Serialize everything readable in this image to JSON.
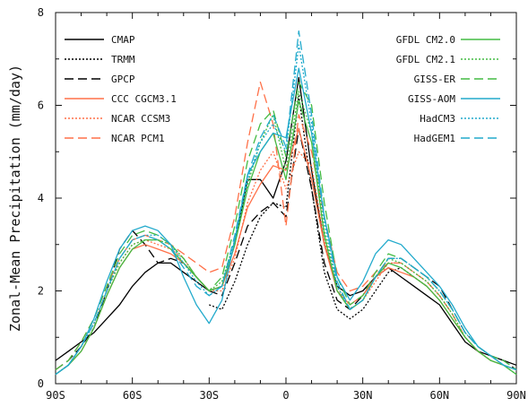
{
  "chart_data": {
    "type": "line",
    "title": "",
    "xlabel": "",
    "ylabel": "Zonal-Mean Precipitation (mm/day)",
    "xlim": [
      -90,
      90
    ],
    "ylim": [
      0,
      8
    ],
    "x_ticks": [
      {
        "value": -90,
        "label": "90S"
      },
      {
        "value": -60,
        "label": "60S"
      },
      {
        "value": -30,
        "label": "30S"
      },
      {
        "value": 0,
        "label": "0"
      },
      {
        "value": 30,
        "label": "30N"
      },
      {
        "value": 60,
        "label": "60N"
      },
      {
        "value": 90,
        "label": "90N"
      }
    ],
    "y_ticks": [
      0,
      2,
      4,
      6,
      8
    ],
    "grid": false,
    "legend": "top-left and top-right columns",
    "x": [
      -90,
      -85,
      -80,
      -75,
      -70,
      -65,
      -60,
      -55,
      -50,
      -45,
      -40,
      -35,
      -30,
      -25,
      -20,
      -15,
      -10,
      -5,
      0,
      5,
      10,
      15,
      20,
      25,
      30,
      35,
      40,
      45,
      50,
      55,
      60,
      65,
      70,
      75,
      80,
      85,
      90
    ],
    "series": [
      {
        "name": "CMAP",
        "color": "#000000",
        "dash": "solid",
        "values": [
          0.5,
          0.7,
          0.9,
          1.1,
          1.4,
          1.7,
          2.1,
          2.4,
          2.6,
          2.6,
          2.4,
          2.2,
          2.0,
          2.1,
          3.0,
          4.4,
          4.4,
          4.0,
          4.8,
          6.6,
          4.6,
          3.0,
          2.1,
          1.9,
          2.0,
          2.3,
          2.5,
          2.3,
          2.1,
          1.9,
          1.7,
          1.3,
          0.9,
          0.7,
          0.6,
          0.5,
          0.4
        ]
      },
      {
        "name": "TRMM",
        "color": "#000000",
        "dash": "2,2",
        "values": [
          null,
          null,
          null,
          null,
          null,
          null,
          null,
          null,
          null,
          null,
          null,
          null,
          1.7,
          1.6,
          2.2,
          3.0,
          3.6,
          3.9,
          3.8,
          6.2,
          4.2,
          2.4,
          1.6,
          1.4,
          1.6,
          2.0,
          2.4,
          2.5,
          2.3,
          2.1,
          null,
          null,
          null,
          null,
          null,
          null,
          null
        ]
      },
      {
        "name": "GPCP",
        "color": "#000000",
        "dash": "10,5",
        "values": [
          0.3,
          0.5,
          0.8,
          1.2,
          2.0,
          2.9,
          3.3,
          3.0,
          2.6,
          2.7,
          2.6,
          2.3,
          2.0,
          1.9,
          2.6,
          3.4,
          3.7,
          3.9,
          3.6,
          5.5,
          4.2,
          2.6,
          1.8,
          1.6,
          1.9,
          2.3,
          2.7,
          2.7,
          2.5,
          2.3,
          2.1,
          1.6,
          1.1,
          0.8,
          0.6,
          0.5,
          0.3
        ]
      },
      {
        "name": "CCC CGCM3.1",
        "color": "#ff7048",
        "dash": "solid",
        "values": [
          0.2,
          0.4,
          0.7,
          1.2,
          1.9,
          2.5,
          2.9,
          3.0,
          2.9,
          2.8,
          2.6,
          2.3,
          2.0,
          2.1,
          2.8,
          3.8,
          4.3,
          4.7,
          4.6,
          5.5,
          4.4,
          3.0,
          2.0,
          1.7,
          1.9,
          2.3,
          2.5,
          2.4,
          2.3,
          2.1,
          1.8,
          1.4,
          1.0,
          0.7,
          0.5,
          0.4,
          0.3
        ]
      },
      {
        "name": "NCAR CCSM3",
        "color": "#ff7048",
        "dash": "2,2",
        "values": [
          0.2,
          0.4,
          0.8,
          1.3,
          2.0,
          2.6,
          3.0,
          3.1,
          3.0,
          2.9,
          2.7,
          2.3,
          2.0,
          2.0,
          2.7,
          3.9,
          4.6,
          5.0,
          4.2,
          5.0,
          4.7,
          3.1,
          2.0,
          1.6,
          1.8,
          2.2,
          2.6,
          2.6,
          2.4,
          2.2,
          1.9,
          1.5,
          1.0,
          0.7,
          0.5,
          0.4,
          0.3
        ]
      },
      {
        "name": "NCAR PCM1",
        "color": "#ff7048",
        "dash": "10,5",
        "values": [
          0.3,
          0.5,
          0.9,
          1.4,
          2.1,
          2.7,
          3.1,
          3.2,
          3.1,
          3.0,
          2.8,
          2.6,
          2.4,
          2.5,
          3.6,
          5.2,
          6.5,
          5.6,
          3.4,
          5.8,
          5.0,
          3.6,
          2.4,
          2.0,
          2.1,
          2.4,
          2.6,
          2.6,
          2.4,
          2.2,
          1.9,
          1.5,
          1.0,
          0.7,
          0.5,
          0.4,
          0.3
        ]
      },
      {
        "name": "GFDL CM2.0",
        "color": "#44bb44",
        "dash": "solid",
        "values": [
          0.2,
          0.4,
          0.7,
          1.2,
          1.9,
          2.5,
          2.9,
          3.1,
          3.1,
          2.9,
          2.6,
          2.3,
          2.0,
          2.1,
          3.0,
          4.2,
          5.0,
          5.4,
          4.4,
          6.1,
          5.2,
          3.2,
          2.0,
          1.6,
          1.8,
          2.3,
          2.6,
          2.5,
          2.3,
          2.1,
          1.8,
          1.4,
          1.0,
          0.7,
          0.5,
          0.4,
          0.2
        ]
      },
      {
        "name": "GFDL CM2.1",
        "color": "#44bb44",
        "dash": "2,2",
        "values": [
          0.2,
          0.4,
          0.8,
          1.3,
          2.0,
          2.6,
          3.0,
          3.1,
          3.1,
          3.0,
          2.7,
          2.3,
          2.0,
          2.2,
          3.1,
          4.3,
          5.2,
          5.8,
          4.6,
          6.3,
          5.4,
          3.3,
          2.1,
          1.6,
          1.8,
          2.3,
          2.7,
          2.6,
          2.4,
          2.2,
          1.9,
          1.5,
          1.0,
          0.7,
          0.5,
          0.4,
          0.2
        ]
      },
      {
        "name": "GISS-ER",
        "color": "#44bb44",
        "dash": "10,5",
        "values": [
          0.3,
          0.5,
          0.9,
          1.4,
          2.1,
          2.8,
          3.2,
          3.3,
          3.2,
          3.0,
          2.7,
          2.3,
          2.0,
          2.3,
          3.4,
          4.8,
          5.6,
          5.9,
          4.9,
          6.5,
          6.0,
          3.9,
          2.3,
          1.7,
          1.9,
          2.4,
          2.8,
          2.7,
          2.5,
          2.3,
          2.0,
          1.6,
          1.1,
          0.8,
          0.6,
          0.5,
          0.3
        ]
      },
      {
        "name": "GISS-AOM",
        "color": "#22aacc",
        "dash": "solid",
        "values": [
          0.2,
          0.4,
          0.8,
          1.4,
          2.2,
          2.9,
          3.3,
          3.4,
          3.3,
          3.0,
          2.3,
          1.7,
          1.3,
          1.8,
          3.1,
          4.5,
          5.0,
          5.4,
          5.3,
          6.8,
          5.4,
          3.6,
          2.3,
          1.8,
          2.2,
          2.8,
          3.1,
          3.0,
          2.7,
          2.4,
          2.1,
          1.7,
          1.2,
          0.8,
          0.6,
          0.4,
          0.3
        ]
      },
      {
        "name": "HadCM3",
        "color": "#22aacc",
        "dash": "2,2",
        "values": [
          0.2,
          0.4,
          0.8,
          1.3,
          2.0,
          2.7,
          3.1,
          3.2,
          3.2,
          3.0,
          2.6,
          2.2,
          1.9,
          2.1,
          3.1,
          4.4,
          5.2,
          5.6,
          5.0,
          7.3,
          5.6,
          3.5,
          2.1,
          1.6,
          1.8,
          2.3,
          2.7,
          2.7,
          2.5,
          2.3,
          2.0,
          1.6,
          1.1,
          0.8,
          0.6,
          0.4,
          0.3
        ]
      },
      {
        "name": "HadGEM1",
        "color": "#22aacc",
        "dash": "10,5",
        "values": [
          0.2,
          0.4,
          0.8,
          1.3,
          2.0,
          2.7,
          3.1,
          3.2,
          3.1,
          2.9,
          2.5,
          2.1,
          1.9,
          2.1,
          3.2,
          4.5,
          5.3,
          5.8,
          5.1,
          7.6,
          5.8,
          3.6,
          2.2,
          1.6,
          1.8,
          2.3,
          2.7,
          2.7,
          2.5,
          2.3,
          2.0,
          1.6,
          1.1,
          0.8,
          0.6,
          0.4,
          0.3
        ]
      }
    ]
  }
}
